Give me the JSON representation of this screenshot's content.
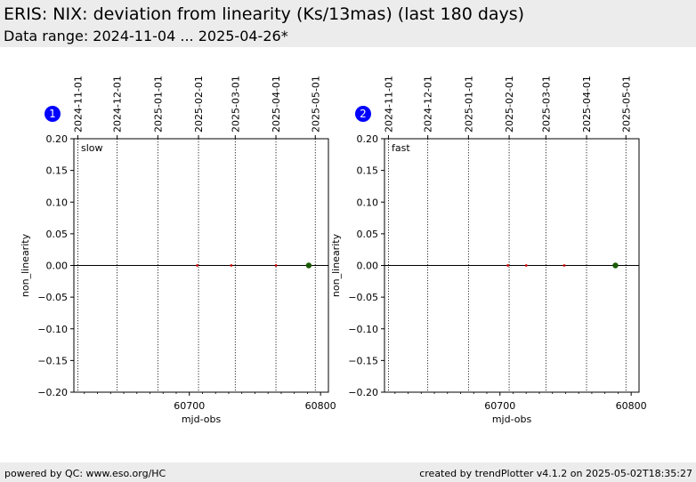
{
  "header": {
    "title": "ERIS: NIX: deviation from linearity (Ks/13mas) (last 180 days)",
    "subtitle": "Data range: 2024-11-04 ... 2025-04-26*"
  },
  "footer": {
    "left": "powered by QC: www.eso.org/HC",
    "right": "created by trendPlotter v4.1.2 on 2025-05-02T18:35:27"
  },
  "colors": {
    "badge": "#0000ff",
    "small_point": "#cc0000",
    "last_point": "#1a5c00",
    "header_bg": "#ececec"
  },
  "chart_data": [
    {
      "type": "scatter",
      "badge": "1",
      "panel_label": "slow",
      "xlabel": "mjd-obs",
      "ylabel": "non_linearity",
      "xlim": [
        60612,
        60806
      ],
      "ylim": [
        -0.2,
        0.2
      ],
      "x_ticks": [
        60700,
        60800
      ],
      "y_ticks": [
        0.2,
        0.15,
        0.1,
        0.05,
        0.0,
        -0.05,
        -0.1,
        -0.15,
        -0.2
      ],
      "y_tick_labels": [
        "0.20",
        "0.15",
        "0.10",
        "0.05",
        "0.00",
        "−0.05",
        "−0.10",
        "−0.15",
        "−0.20"
      ],
      "date_ticks": [
        {
          "label": "2024-11-01",
          "mjd": 60615
        },
        {
          "label": "2024-12-01",
          "mjd": 60645
        },
        {
          "label": "2025-01-01",
          "mjd": 60676
        },
        {
          "label": "2025-02-01",
          "mjd": 60707
        },
        {
          "label": "2025-03-01",
          "mjd": 60735
        },
        {
          "label": "2025-04-01",
          "mjd": 60766
        },
        {
          "label": "2025-05-01",
          "mjd": 60796
        }
      ],
      "series": [
        {
          "kind": "history",
          "x": [
            60706,
            60732,
            60766
          ],
          "y": [
            0.0,
            0.0,
            0.0
          ]
        },
        {
          "kind": "latest",
          "x": [
            60791
          ],
          "y": [
            0.0
          ]
        }
      ]
    },
    {
      "type": "scatter",
      "badge": "2",
      "panel_label": "fast",
      "xlabel": "mjd-obs",
      "ylabel": "non_linearity",
      "xlim": [
        60612,
        60806
      ],
      "ylim": [
        -0.2,
        0.2
      ],
      "x_ticks": [
        60700,
        60800
      ],
      "y_ticks": [
        0.2,
        0.15,
        0.1,
        0.05,
        0.0,
        -0.05,
        -0.1,
        -0.15,
        -0.2
      ],
      "y_tick_labels": [
        "0.20",
        "0.15",
        "0.10",
        "0.05",
        "0.00",
        "−0.05",
        "−0.10",
        "−0.15",
        "−0.20"
      ],
      "date_ticks": [
        {
          "label": "2024-11-01",
          "mjd": 60615
        },
        {
          "label": "2024-12-01",
          "mjd": 60645
        },
        {
          "label": "2025-01-01",
          "mjd": 60676
        },
        {
          "label": "2025-02-01",
          "mjd": 60707
        },
        {
          "label": "2025-03-01",
          "mjd": 60735
        },
        {
          "label": "2025-04-01",
          "mjd": 60766
        },
        {
          "label": "2025-05-01",
          "mjd": 60796
        }
      ],
      "series": [
        {
          "kind": "history",
          "x": [
            60706,
            60720,
            60749
          ],
          "y": [
            0.0,
            0.0,
            0.0
          ]
        },
        {
          "kind": "latest",
          "x": [
            60788
          ],
          "y": [
            0.0
          ]
        }
      ]
    }
  ]
}
